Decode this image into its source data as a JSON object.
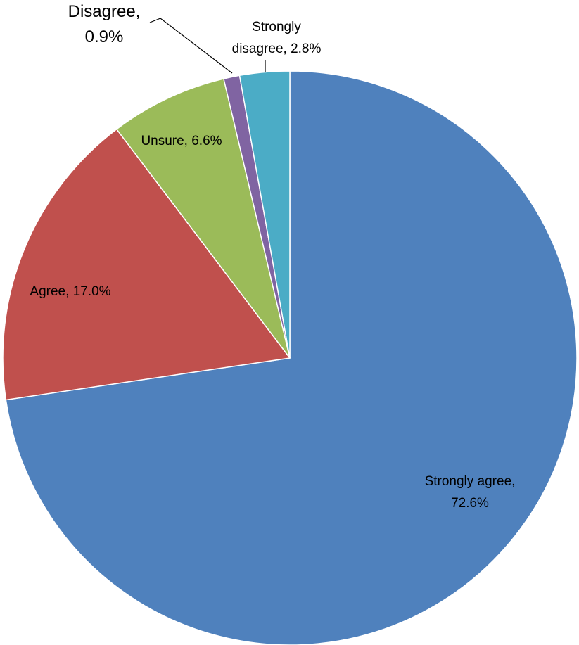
{
  "chart_data": {
    "type": "pie",
    "title": "",
    "start_angle_deg": 0,
    "direction": "clockwise",
    "slices": [
      {
        "label": "Strongly agree",
        "value": 72.6,
        "value_text": "72.6%",
        "color": "#4f81bd"
      },
      {
        "label": "Agree",
        "value": 17.0,
        "value_text": "17.0%",
        "color": "#c0504d"
      },
      {
        "label": "Unsure",
        "value": 6.6,
        "value_text": "6.6%",
        "color": "#9bbb59"
      },
      {
        "label": "Disagree",
        "value": 0.9,
        "value_text": "0.9%",
        "color": "#8064a2"
      },
      {
        "label": "Strongly disagree",
        "value": 2.8,
        "value_text": "2.8%",
        "color": "#4bacc6"
      }
    ],
    "legend": "none",
    "data_labels": [
      {
        "lines": [
          "Strongly agree,",
          "72.6%"
        ]
      },
      {
        "lines": [
          "Agree, 17.0%"
        ]
      },
      {
        "lines": [
          "Unsure, 6.6%"
        ]
      },
      {
        "lines": [
          "Disagree,",
          "0.9%"
        ]
      },
      {
        "lines": [
          "Strongly",
          "disagree, 2.8%"
        ]
      }
    ]
  }
}
